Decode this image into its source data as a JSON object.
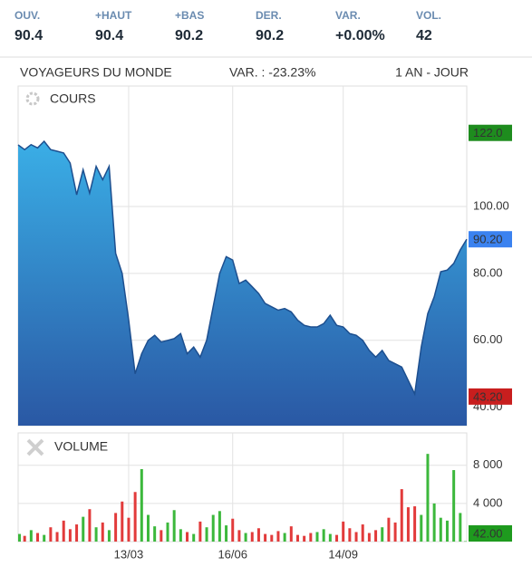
{
  "header": {
    "stats": [
      {
        "label": "OUV.",
        "value": "90.4"
      },
      {
        "label": "+HAUT",
        "value": "90.4"
      },
      {
        "label": "+BAS",
        "value": "90.2"
      },
      {
        "label": "DER.",
        "value": "90.2"
      },
      {
        "label": "VAR.",
        "value": "+0.00%",
        "color": "#2bb24c"
      },
      {
        "label": "VOL.",
        "value": "42"
      }
    ],
    "name": "VOYAGEURS DU MONDE",
    "change": "VAR. : -23.23%",
    "period": "1 AN - JOUR"
  },
  "chart_data": [
    {
      "type": "area",
      "title": "COURS",
      "color": "#2f7fcc",
      "line_color": "#1d4f8f",
      "grid": true,
      "values": [
        118.4,
        117,
        118.5,
        117.5,
        119.5,
        117,
        116.5,
        116,
        113,
        103.5,
        111,
        104,
        112,
        108,
        112,
        86,
        80,
        66,
        50,
        56,
        60,
        61.5,
        59.5,
        60,
        60.5,
        62,
        56,
        58,
        55,
        60,
        70,
        80,
        85,
        84,
        77,
        78,
        76,
        74,
        71,
        70,
        69,
        69.5,
        68.5,
        66,
        64.5,
        64,
        64,
        65,
        67.5,
        64.5,
        64,
        62,
        61.5,
        60,
        57,
        55,
        57,
        54,
        53,
        52,
        48,
        44,
        58,
        68,
        73,
        80.5,
        81,
        83,
        87,
        90.2
      ],
      "ylim": [
        34.5,
        136
      ],
      "yticks": [
        {
          "value": 40,
          "label": "40.00"
        },
        {
          "value": 60,
          "label": "60.00"
        },
        {
          "value": 80,
          "label": "80.00"
        },
        {
          "value": 100,
          "label": "100.00"
        }
      ],
      "markers": [
        {
          "value": 122,
          "label": "122.0",
          "color": "#1e8c1e"
        },
        {
          "value": 90.2,
          "label": "90.20",
          "color": "#3b82f0"
        },
        {
          "value": 43.2,
          "label": "43.20",
          "color": "#c81e1e"
        }
      ]
    },
    {
      "type": "bar",
      "title": "VOLUME",
      "up_color": "#3cb83c",
      "down_color": "#e23b3b",
      "grid": true,
      "categories": [
        null,
        null,
        null,
        null,
        null,
        null,
        null,
        null,
        null,
        null,
        null,
        null,
        null,
        null,
        null,
        null,
        null,
        "13/03",
        null,
        null,
        null,
        null,
        null,
        null,
        null,
        null,
        null,
        null,
        null,
        null,
        null,
        null,
        null,
        "16/06",
        null,
        null,
        null,
        null,
        null,
        null,
        null,
        null,
        null,
        null,
        null,
        null,
        null,
        null,
        null,
        null,
        "14/09",
        null,
        null,
        null,
        null,
        null,
        null,
        null,
        null,
        null,
        null,
        null,
        null,
        null,
        null,
        null,
        null,
        null,
        null,
        null
      ],
      "values": [
        800,
        600,
        1200,
        900,
        700,
        1500,
        1000,
        2200,
        1300,
        1800,
        2600,
        3400,
        1500,
        2000,
        1200,
        3000,
        4200,
        2500,
        5200,
        7600,
        2800,
        1600,
        1200,
        2000,
        3300,
        1300,
        1000,
        800,
        2100,
        1500,
        2800,
        3200,
        1700,
        2400,
        1200,
        900,
        1000,
        1400,
        800,
        700,
        1100,
        900,
        1600,
        700,
        600,
        900,
        1000,
        1300,
        800,
        700,
        2100,
        1400,
        1000,
        1800,
        900,
        1200,
        1500,
        2500,
        2000,
        5500,
        3600,
        3700,
        2800,
        9200,
        4000,
        2500,
        2200,
        7500,
        3000,
        42
      ],
      "ylim": [
        0,
        11400
      ],
      "yticks": [
        {
          "value": 4000,
          "label": "4 000"
        },
        {
          "value": 8000,
          "label": "8 000"
        }
      ],
      "markers": [
        {
          "value": 42,
          "label": "42.00",
          "color": "#1e9a1e"
        }
      ]
    }
  ]
}
